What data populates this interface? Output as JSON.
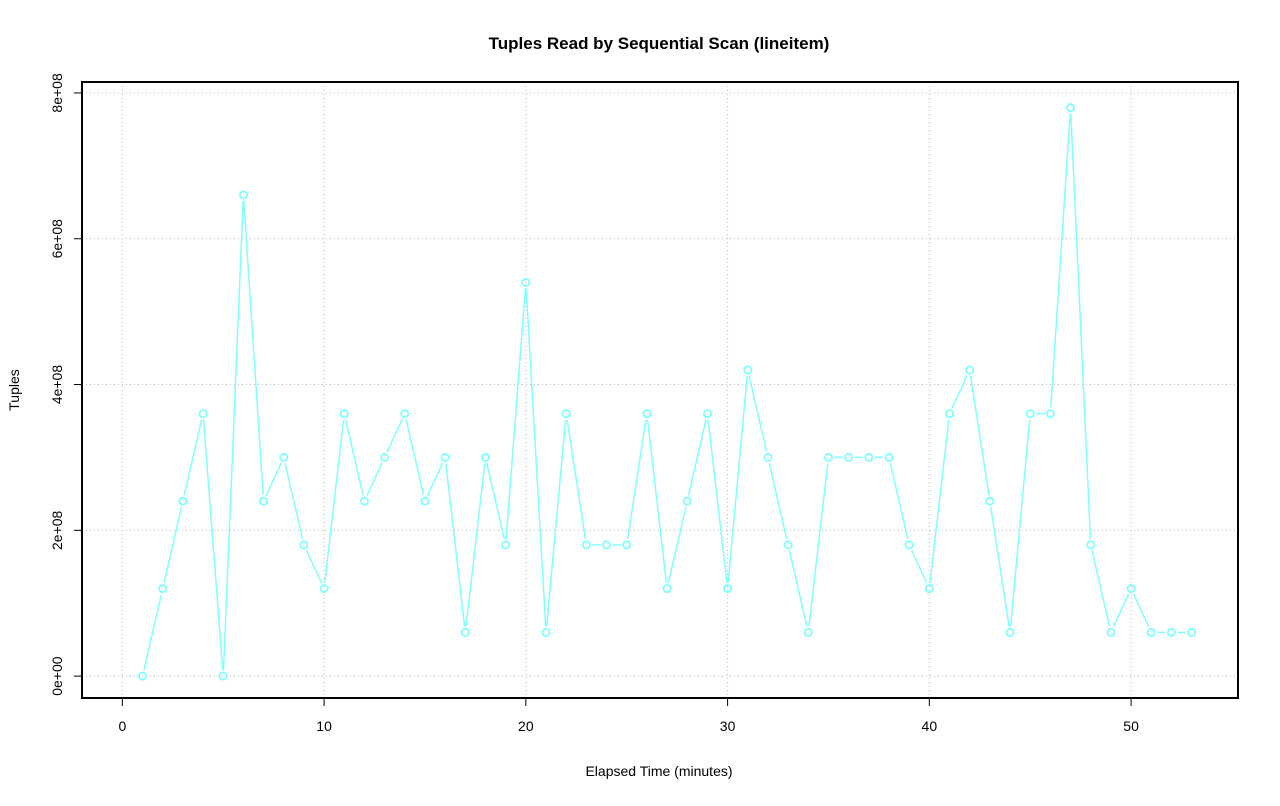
{
  "chart_data": {
    "type": "line",
    "title": "Tuples Read by Sequential Scan (lineitem)",
    "xlabel": "Elapsed Time (minutes)",
    "ylabel": "Tuples",
    "xlim": [
      -2,
      55.3
    ],
    "ylim": [
      -30000000.0,
      815000000.0
    ],
    "xticks": [
      0,
      10,
      20,
      30,
      40,
      50
    ],
    "xtick_labels": [
      "0",
      "10",
      "20",
      "30",
      "40",
      "50"
    ],
    "yticks": [
      0,
      200000000,
      400000000,
      600000000,
      800000000
    ],
    "ytick_labels": [
      "0e+00",
      "2e+08",
      "4e+08",
      "6e+08",
      "8e+08"
    ],
    "grid": true,
    "series": [
      {
        "name": "Tuples",
        "color": "#80FFFF",
        "x": [
          1,
          2,
          3,
          4,
          5,
          6,
          7,
          8,
          9,
          10,
          11,
          12,
          13,
          14,
          15,
          16,
          17,
          18,
          19,
          20,
          21,
          22,
          23,
          24,
          25,
          26,
          27,
          28,
          29,
          30,
          31,
          32,
          33,
          34,
          35,
          36,
          37,
          38,
          39,
          40,
          41,
          42,
          43,
          44,
          45,
          46,
          47,
          48,
          49,
          50,
          51,
          52,
          53
        ],
        "y": [
          0,
          120000000,
          240000000,
          360000000,
          0,
          660000000,
          240000000,
          300000000,
          180000000,
          120000000,
          360000000,
          240000000,
          300000000,
          360000000,
          240000000,
          300000000,
          60000000,
          300000000,
          180000000,
          540000000,
          60000000,
          360000000,
          180000000,
          180000000,
          180000000,
          360000000,
          120000000,
          240000000,
          360000000,
          120000000,
          420000000,
          300000000,
          180000000,
          60000000,
          300000000,
          300000000,
          300000000,
          300000000,
          180000000,
          120000000,
          360000000,
          420000000,
          240000000,
          60000000,
          360000000,
          360000000,
          780000000,
          180000000,
          60000000,
          120000000,
          60000000,
          60000000,
          60000000
        ]
      }
    ]
  }
}
